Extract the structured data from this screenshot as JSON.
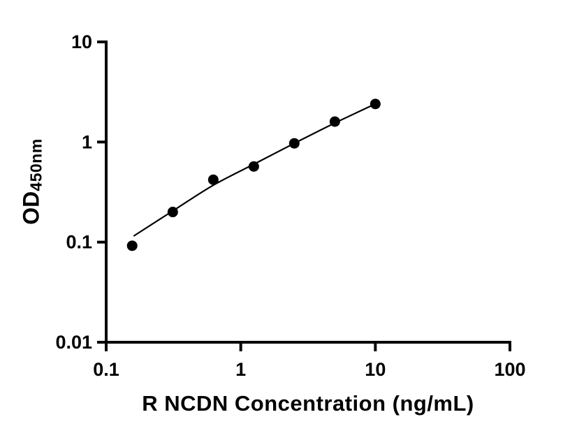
{
  "chart_data": {
    "type": "scatter",
    "title": "",
    "xlabel": "R NCDN Concentration (ng/mL)",
    "ylabel_main": "OD",
    "ylabel_sub": "450nm",
    "x_scale": "log",
    "y_scale": "log",
    "xlim": [
      0.1,
      100
    ],
    "ylim": [
      0.01,
      10
    ],
    "grid": false,
    "legend": "none",
    "x_ticks": [
      {
        "value": 0.1,
        "label": "0.1"
      },
      {
        "value": 1,
        "label": "1"
      },
      {
        "value": 10,
        "label": "10"
      },
      {
        "value": 100,
        "label": "100"
      }
    ],
    "y_ticks": [
      {
        "value": 0.01,
        "label": "0.01"
      },
      {
        "value": 0.1,
        "label": "0.1"
      },
      {
        "value": 1,
        "label": "1"
      },
      {
        "value": 10,
        "label": "10"
      }
    ],
    "points": [
      {
        "x": 0.156,
        "y": 0.092
      },
      {
        "x": 0.3125,
        "y": 0.2
      },
      {
        "x": 0.625,
        "y": 0.42
      },
      {
        "x": 1.25,
        "y": 0.57
      },
      {
        "x": 2.5,
        "y": 0.97
      },
      {
        "x": 5,
        "y": 1.6
      },
      {
        "x": 10,
        "y": 2.4
      }
    ],
    "fit_curve": [
      {
        "x": 0.16,
        "y": 0.115
      },
      {
        "x": 0.3125,
        "y": 0.205
      },
      {
        "x": 0.625,
        "y": 0.37
      },
      {
        "x": 1.25,
        "y": 0.6
      },
      {
        "x": 2.5,
        "y": 0.97
      },
      {
        "x": 5,
        "y": 1.55
      },
      {
        "x": 10,
        "y": 2.4
      }
    ],
    "colors": {
      "point": "#000000",
      "line": "#000000",
      "axis": "#000000",
      "text": "#000000",
      "background": "#ffffff"
    },
    "marker": {
      "shape": "circle",
      "radius": 7.5
    }
  }
}
